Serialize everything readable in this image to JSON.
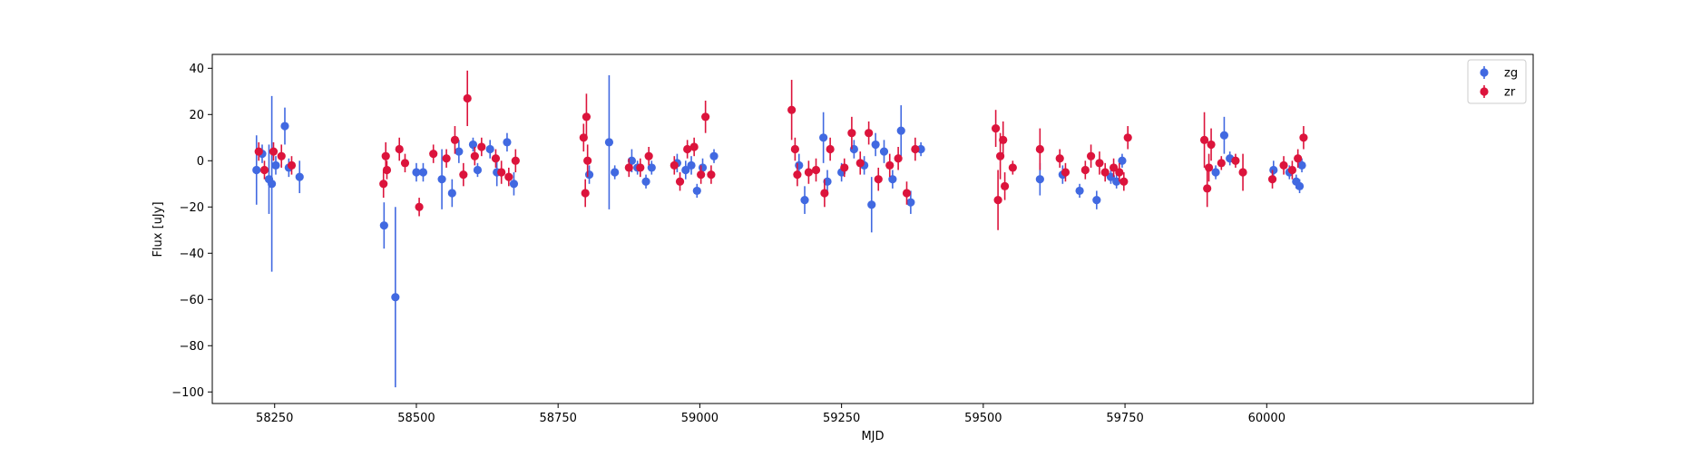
{
  "chart_data": {
    "type": "scatter",
    "title": "",
    "xlabel": "MJD",
    "ylabel": "Flux [uJy]",
    "xlim": [
      58140,
      60470
    ],
    "ylim": [
      -105,
      46
    ],
    "x_ticks": [
      58250,
      58500,
      58750,
      59000,
      59250,
      59500,
      59750,
      60000
    ],
    "y_ticks": [
      -100,
      -80,
      -60,
      -40,
      -20,
      0,
      20,
      40
    ],
    "grid": false,
    "legend": "upper-right",
    "series": [
      {
        "name": "zg",
        "color": "#4169e1",
        "points": [
          {
            "x": 58218,
            "y": -4,
            "err": 15
          },
          {
            "x": 58228,
            "y": 3,
            "err": 4
          },
          {
            "x": 58240,
            "y": -8,
            "err": 15
          },
          {
            "x": 58245,
            "y": -10,
            "err": 38
          },
          {
            "x": 58252,
            "y": -2,
            "err": 4
          },
          {
            "x": 58268,
            "y": 15,
            "err": 8
          },
          {
            "x": 58275,
            "y": -3,
            "err": 4
          },
          {
            "x": 58294,
            "y": -7,
            "err": 7
          },
          {
            "x": 58443,
            "y": -28,
            "err": 10
          },
          {
            "x": 58463,
            "y": -59,
            "err": 39
          },
          {
            "x": 58500,
            "y": -5,
            "err": 4
          },
          {
            "x": 58512,
            "y": -5,
            "err": 4
          },
          {
            "x": 58545,
            "y": -8,
            "err": 13
          },
          {
            "x": 58563,
            "y": -14,
            "err": 6
          },
          {
            "x": 58575,
            "y": 4,
            "err": 5
          },
          {
            "x": 58600,
            "y": 7,
            "err": 3
          },
          {
            "x": 58608,
            "y": -4,
            "err": 3
          },
          {
            "x": 58630,
            "y": 5,
            "err": 4
          },
          {
            "x": 58642,
            "y": -5,
            "err": 6
          },
          {
            "x": 58660,
            "y": 8,
            "err": 4
          },
          {
            "x": 58672,
            "y": -10,
            "err": 5
          },
          {
            "x": 58805,
            "y": -6,
            "err": 4
          },
          {
            "x": 58840,
            "y": 8,
            "err": 29
          },
          {
            "x": 58850,
            "y": -5,
            "err": 3
          },
          {
            "x": 58880,
            "y": 0,
            "err": 5
          },
          {
            "x": 58890,
            "y": -3,
            "err": 3
          },
          {
            "x": 58905,
            "y": -9,
            "err": 3
          },
          {
            "x": 58915,
            "y": -3,
            "err": 3
          },
          {
            "x": 58960,
            "y": -1,
            "err": 4
          },
          {
            "x": 58975,
            "y": -4,
            "err": 4
          },
          {
            "x": 58985,
            "y": -2,
            "err": 4
          },
          {
            "x": 58995,
            "y": -13,
            "err": 3
          },
          {
            "x": 59005,
            "y": -3,
            "err": 4
          },
          {
            "x": 59025,
            "y": 2,
            "err": 3
          },
          {
            "x": 59175,
            "y": -2,
            "err": 5
          },
          {
            "x": 59185,
            "y": -17,
            "err": 6
          },
          {
            "x": 59218,
            "y": 10,
            "err": 11
          },
          {
            "x": 59225,
            "y": -9,
            "err": 5
          },
          {
            "x": 59250,
            "y": -5,
            "err": 4
          },
          {
            "x": 59272,
            "y": 5,
            "err": 4
          },
          {
            "x": 59290,
            "y": -2,
            "err": 4
          },
          {
            "x": 59303,
            "y": -19,
            "err": 12
          },
          {
            "x": 59310,
            "y": 7,
            "err": 5
          },
          {
            "x": 59325,
            "y": 4,
            "err": 5
          },
          {
            "x": 59340,
            "y": -8,
            "err": 4
          },
          {
            "x": 59355,
            "y": 13,
            "err": 11
          },
          {
            "x": 59372,
            "y": -18,
            "err": 5
          },
          {
            "x": 59390,
            "y": 5,
            "err": 3
          },
          {
            "x": 59600,
            "y": -8,
            "err": 7
          },
          {
            "x": 59640,
            "y": -6,
            "err": 4
          },
          {
            "x": 59670,
            "y": -13,
            "err": 3
          },
          {
            "x": 59700,
            "y": -17,
            "err": 4
          },
          {
            "x": 59725,
            "y": -7,
            "err": 3
          },
          {
            "x": 59735,
            "y": -9,
            "err": 3
          },
          {
            "x": 59745,
            "y": 0,
            "err": 3
          },
          {
            "x": 59910,
            "y": -5,
            "err": 3
          },
          {
            "x": 59925,
            "y": 11,
            "err": 8
          },
          {
            "x": 59935,
            "y": 1,
            "err": 3
          },
          {
            "x": 60012,
            "y": -4,
            "err": 4
          },
          {
            "x": 60040,
            "y": -5,
            "err": 3
          },
          {
            "x": 60052,
            "y": -9,
            "err": 3
          },
          {
            "x": 60058,
            "y": -11,
            "err": 3
          },
          {
            "x": 60062,
            "y": -2,
            "err": 3
          }
        ]
      },
      {
        "name": "zr",
        "color": "#dc143c",
        "points": [
          {
            "x": 58222,
            "y": 4,
            "err": 4
          },
          {
            "x": 58232,
            "y": -4,
            "err": 4
          },
          {
            "x": 58248,
            "y": 4,
            "err": 4
          },
          {
            "x": 58262,
            "y": 2,
            "err": 5
          },
          {
            "x": 58280,
            "y": -2,
            "err": 4
          },
          {
            "x": 58442,
            "y": -10,
            "err": 6
          },
          {
            "x": 58446,
            "y": 2,
            "err": 6
          },
          {
            "x": 58448,
            "y": -4,
            "err": 4
          },
          {
            "x": 58470,
            "y": 5,
            "err": 5
          },
          {
            "x": 58480,
            "y": -1,
            "err": 4
          },
          {
            "x": 58505,
            "y": -20,
            "err": 4
          },
          {
            "x": 58530,
            "y": 3,
            "err": 4
          },
          {
            "x": 58553,
            "y": 1,
            "err": 4
          },
          {
            "x": 58568,
            "y": 9,
            "err": 6
          },
          {
            "x": 58583,
            "y": -6,
            "err": 5
          },
          {
            "x": 58590,
            "y": 27,
            "err": 12
          },
          {
            "x": 58603,
            "y": 2,
            "err": 4
          },
          {
            "x": 58615,
            "y": 6,
            "err": 4
          },
          {
            "x": 58640,
            "y": 1,
            "err": 4
          },
          {
            "x": 58650,
            "y": -5,
            "err": 5
          },
          {
            "x": 58663,
            "y": -7,
            "err": 4
          },
          {
            "x": 58675,
            "y": 0,
            "err": 5
          },
          {
            "x": 58795,
            "y": 10,
            "err": 6
          },
          {
            "x": 58798,
            "y": -14,
            "err": 6
          },
          {
            "x": 58800,
            "y": 19,
            "err": 10
          },
          {
            "x": 58802,
            "y": 0,
            "err": 7
          },
          {
            "x": 58875,
            "y": -3,
            "err": 4
          },
          {
            "x": 58895,
            "y": -3,
            "err": 4
          },
          {
            "x": 58910,
            "y": 2,
            "err": 4
          },
          {
            "x": 58955,
            "y": -2,
            "err": 4
          },
          {
            "x": 58965,
            "y": -9,
            "err": 4
          },
          {
            "x": 58978,
            "y": 5,
            "err": 4
          },
          {
            "x": 58990,
            "y": 6,
            "err": 4
          },
          {
            "x": 59002,
            "y": -6,
            "err": 4
          },
          {
            "x": 59010,
            "y": 19,
            "err": 7
          },
          {
            "x": 59020,
            "y": -6,
            "err": 4
          },
          {
            "x": 59162,
            "y": 22,
            "err": 13
          },
          {
            "x": 59168,
            "y": 5,
            "err": 5
          },
          {
            "x": 59172,
            "y": -6,
            "err": 5
          },
          {
            "x": 59192,
            "y": -5,
            "err": 5
          },
          {
            "x": 59205,
            "y": -4,
            "err": 5
          },
          {
            "x": 59220,
            "y": -14,
            "err": 6
          },
          {
            "x": 59230,
            "y": 5,
            "err": 5
          },
          {
            "x": 59255,
            "y": -3,
            "err": 4
          },
          {
            "x": 59268,
            "y": 12,
            "err": 7
          },
          {
            "x": 59283,
            "y": -1,
            "err": 5
          },
          {
            "x": 59298,
            "y": 12,
            "err": 5
          },
          {
            "x": 59315,
            "y": -8,
            "err": 5
          },
          {
            "x": 59335,
            "y": -2,
            "err": 5
          },
          {
            "x": 59350,
            "y": 1,
            "err": 5
          },
          {
            "x": 59365,
            "y": -14,
            "err": 5
          },
          {
            "x": 59380,
            "y": 5,
            "err": 5
          },
          {
            "x": 59522,
            "y": 14,
            "err": 8
          },
          {
            "x": 59526,
            "y": -17,
            "err": 13
          },
          {
            "x": 59530,
            "y": 2,
            "err": 10
          },
          {
            "x": 59535,
            "y": 9,
            "err": 8
          },
          {
            "x": 59538,
            "y": -11,
            "err": 6
          },
          {
            "x": 59552,
            "y": -3,
            "err": 3
          },
          {
            "x": 59600,
            "y": 5,
            "err": 9
          },
          {
            "x": 59635,
            "y": 1,
            "err": 4
          },
          {
            "x": 59645,
            "y": -5,
            "err": 4
          },
          {
            "x": 59680,
            "y": -4,
            "err": 4
          },
          {
            "x": 59690,
            "y": 2,
            "err": 5
          },
          {
            "x": 59705,
            "y": -1,
            "err": 5
          },
          {
            "x": 59715,
            "y": -5,
            "err": 4
          },
          {
            "x": 59730,
            "y": -3,
            "err": 4
          },
          {
            "x": 59740,
            "y": -5,
            "err": 4
          },
          {
            "x": 59748,
            "y": -9,
            "err": 4
          },
          {
            "x": 59755,
            "y": 10,
            "err": 5
          },
          {
            "x": 59890,
            "y": 9,
            "err": 12
          },
          {
            "x": 59895,
            "y": -12,
            "err": 8
          },
          {
            "x": 59898,
            "y": -3,
            "err": 6
          },
          {
            "x": 59902,
            "y": 7,
            "err": 7
          },
          {
            "x": 59920,
            "y": -1,
            "err": 3
          },
          {
            "x": 59945,
            "y": 0,
            "err": 3
          },
          {
            "x": 59958,
            "y": -5,
            "err": 8
          },
          {
            "x": 60010,
            "y": -8,
            "err": 4
          },
          {
            "x": 60030,
            "y": -2,
            "err": 4
          },
          {
            "x": 60045,
            "y": -4,
            "err": 4
          },
          {
            "x": 60055,
            "y": 1,
            "err": 4
          },
          {
            "x": 60065,
            "y": 10,
            "err": 5
          }
        ]
      }
    ]
  }
}
